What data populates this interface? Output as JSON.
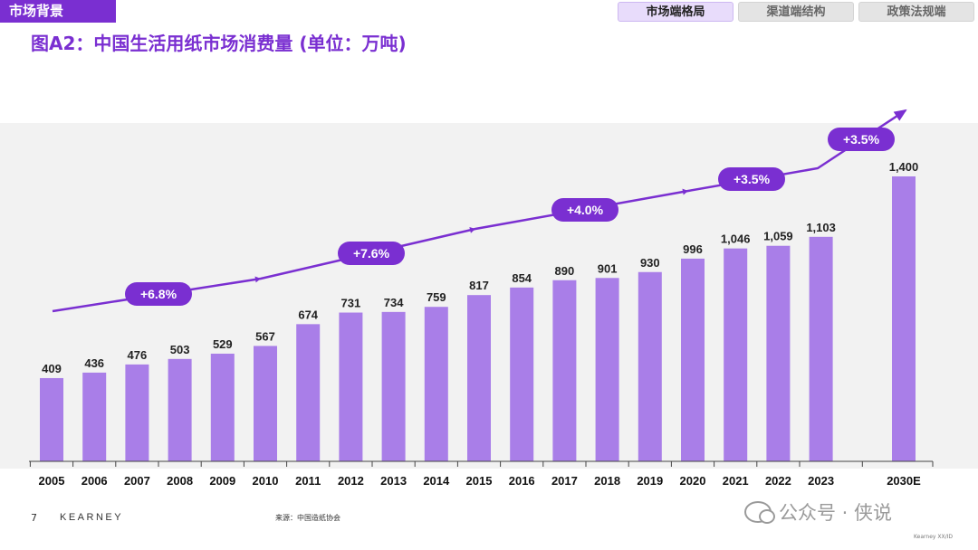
{
  "section_tag": "市场背景",
  "tabs": [
    {
      "label": "市场端格局",
      "active": true
    },
    {
      "label": "渠道端结构",
      "active": false
    },
    {
      "label": "政策法规端",
      "active": false
    }
  ],
  "title": "图A2：中国生活用纸市场消费量 (单位：万吨)",
  "chart_data": {
    "type": "bar",
    "categories": [
      "2005",
      "2006",
      "2007",
      "2008",
      "2009",
      "2010",
      "2011",
      "2012",
      "2013",
      "2014",
      "2015",
      "2016",
      "2017",
      "2018",
      "2019",
      "2020",
      "2021",
      "2022",
      "2023",
      "2030E"
    ],
    "values": [
      409,
      436,
      476,
      503,
      529,
      567,
      674,
      731,
      734,
      759,
      817,
      854,
      890,
      901,
      930,
      996,
      1046,
      1059,
      1103,
      1400
    ],
    "value_labels": [
      "409",
      "436",
      "476",
      "503",
      "529",
      "567",
      "674",
      "731",
      "734",
      "759",
      "817",
      "854",
      "890",
      "901",
      "930",
      "996",
      "1,046",
      "1,059",
      "1,103",
      "1,400"
    ],
    "ylim": [
      0,
      1400
    ],
    "bar_color": "#a97ee8",
    "accent_color": "#7a2fd1",
    "trend_annotations": [
      {
        "label": "+6.8%",
        "period": "2005-2010"
      },
      {
        "label": "+7.6%",
        "period": "2010-2015"
      },
      {
        "label": "+4.0%",
        "period": "2015-2020"
      },
      {
        "label": "+3.5%",
        "period": "2020-2023"
      },
      {
        "label": "+3.5%",
        "period": "2023-2030E"
      }
    ]
  },
  "footer": {
    "page": "7",
    "brand": "KEARNEY",
    "source": "来源：中国造纸协会",
    "watermark": "公众号 · 侠说",
    "corner_note": "Kearney XX/ID"
  }
}
